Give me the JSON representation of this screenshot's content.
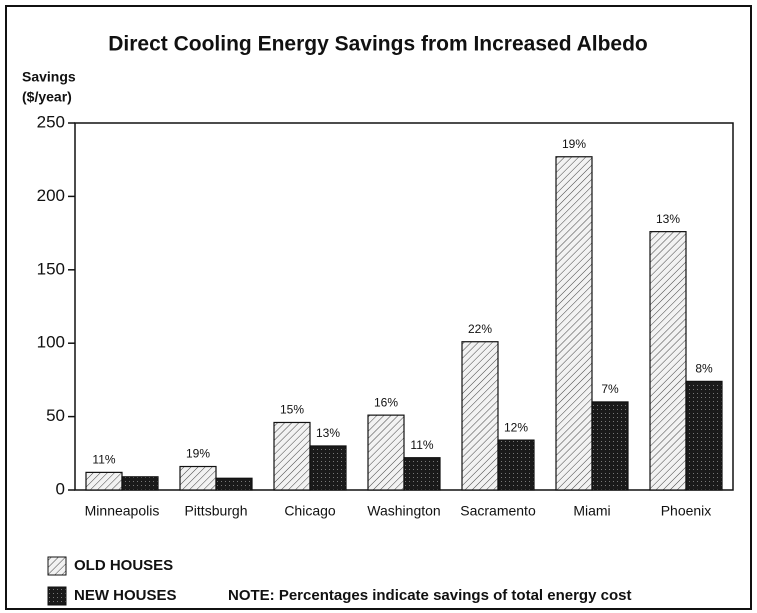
{
  "chart_data": {
    "type": "bar",
    "title": "Direct Cooling Energy Savings from Increased Albedo",
    "ylabel": [
      "Savings",
      "($/year)"
    ],
    "note": "NOTE: Percentages indicate savings of total energy cost",
    "categories": [
      "Minneapolis",
      "Pittsburgh",
      "Chicago",
      "Washington",
      "Sacramento",
      "Miami",
      "Phoenix"
    ],
    "series": [
      {
        "name": "OLD HOUSES",
        "color": "#d8d8d8",
        "values": [
          12,
          16,
          46,
          51,
          101,
          227,
          176
        ],
        "annotations": [
          "11%",
          "19%",
          "15%",
          "16%",
          "22%",
          "19%",
          "13%"
        ]
      },
      {
        "name": "NEW HOUSES",
        "color": "#1a1a1a",
        "values": [
          9,
          8,
          30,
          22,
          34,
          60,
          74
        ],
        "annotations": [
          null,
          null,
          "13%",
          "11%",
          "12%",
          "7%",
          "8%"
        ]
      }
    ],
    "ylim": [
      0,
      250
    ],
    "yticks": [
      0,
      50,
      100,
      150,
      200,
      250
    ]
  }
}
